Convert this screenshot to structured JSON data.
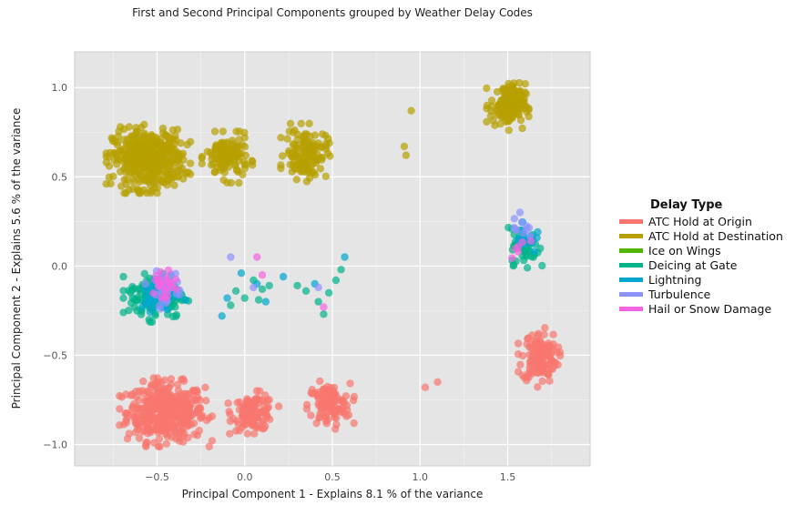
{
  "chart_data": {
    "type": "scatter",
    "title": "First and Second Principal Components grouped by Weather Delay Codes",
    "xlabel": "Principal Component 1 - Explains 8.1 % of the variance",
    "ylabel": "Principal Component 2 - Explains 5.6 % of the variance",
    "xlim": [
      -0.97,
      1.97
    ],
    "ylim": [
      -1.12,
      1.2
    ],
    "x_ticks": [
      -0.5,
      0.0,
      0.5,
      1.0,
      1.5
    ],
    "x_tick_labels": [
      "−0.5",
      "0.0",
      "0.5",
      "1.0",
      "1.5"
    ],
    "y_ticks": [
      -1.0,
      -0.5,
      0.0,
      0.5,
      1.0
    ],
    "y_tick_labels": [
      "−1.0",
      "−0.5",
      "0.0",
      "0.5",
      "1.0"
    ],
    "grid": true,
    "background": "#e5e5e5",
    "legend": {
      "title": "Delay Type",
      "placement": "outside-right",
      "entries": [
        {
          "name": "ATC Hold at Origin",
          "color": "#f8766d"
        },
        {
          "name": "ATC Hold at Destination",
          "color": "#b79f00"
        },
        {
          "name": "Ice on  Wings",
          "color": "#53b400"
        },
        {
          "name": "Deicing at Gate",
          "color": "#00b38a"
        },
        {
          "name": "Lightning",
          "color": "#00a6d0"
        },
        {
          "name": "Turbulence",
          "color": "#8b93ff"
        },
        {
          "name": "Hail or Snow  Damage",
          "color": "#f564e3"
        }
      ]
    },
    "series": [
      {
        "color": "#f8766d",
        "clusters": [
          {
            "cx": -0.45,
            "cy": -0.82,
            "sx": 0.11,
            "sy": 0.08,
            "n": 420
          },
          {
            "cx": 0.05,
            "cy": -0.82,
            "sx": 0.06,
            "sy": 0.05,
            "n": 110
          },
          {
            "cx": 0.48,
            "cy": -0.78,
            "sx": 0.06,
            "sy": 0.06,
            "n": 110
          },
          {
            "cx": 1.68,
            "cy": -0.51,
            "sx": 0.05,
            "sy": 0.07,
            "n": 140
          }
        ],
        "points": [
          [
            1.03,
            -0.68
          ],
          [
            1.1,
            -0.65
          ]
        ]
      },
      {
        "color": "#b79f00",
        "clusters": [
          {
            "cx": -0.55,
            "cy": 0.6,
            "sx": 0.1,
            "sy": 0.08,
            "n": 420
          },
          {
            "cx": -0.1,
            "cy": 0.61,
            "sx": 0.06,
            "sy": 0.06,
            "n": 130
          },
          {
            "cx": 0.35,
            "cy": 0.63,
            "sx": 0.06,
            "sy": 0.07,
            "n": 130
          },
          {
            "cx": 1.5,
            "cy": 0.9,
            "sx": 0.05,
            "sy": 0.06,
            "n": 140
          }
        ],
        "points": [
          [
            0.91,
            0.67
          ],
          [
            0.95,
            0.87
          ],
          [
            0.92,
            0.62
          ]
        ]
      },
      {
        "color": "#00b38a",
        "clusters": [
          {
            "cx": -0.5,
            "cy": -0.17,
            "sx": 0.08,
            "sy": 0.06,
            "n": 150
          },
          {
            "cx": 1.6,
            "cy": 0.11,
            "sx": 0.04,
            "sy": 0.05,
            "n": 60
          }
        ],
        "points": [
          [
            0.0,
            -0.18
          ],
          [
            0.1,
            -0.13
          ],
          [
            0.05,
            -0.08
          ],
          [
            -0.05,
            -0.14
          ],
          [
            0.35,
            -0.14
          ],
          [
            0.42,
            -0.2
          ],
          [
            0.48,
            -0.15
          ],
          [
            0.52,
            -0.08
          ],
          [
            0.55,
            -0.02
          ],
          [
            0.45,
            -0.27
          ],
          [
            0.3,
            -0.11
          ],
          [
            0.14,
            -0.11
          ],
          [
            -0.08,
            -0.22
          ],
          [
            0.08,
            -0.19
          ]
        ]
      },
      {
        "color": "#00a6d0",
        "clusters": [
          {
            "cx": -0.48,
            "cy": -0.15,
            "sx": 0.06,
            "sy": 0.05,
            "n": 50
          },
          {
            "cx": 1.6,
            "cy": 0.15,
            "sx": 0.03,
            "sy": 0.04,
            "n": 18
          }
        ],
        "points": [
          [
            -0.02,
            -0.04
          ],
          [
            0.07,
            -0.1
          ],
          [
            0.12,
            -0.2
          ],
          [
            -0.13,
            -0.28
          ],
          [
            0.57,
            0.05
          ],
          [
            0.4,
            -0.1
          ],
          [
            -0.1,
            -0.18
          ],
          [
            0.22,
            -0.06
          ]
        ]
      },
      {
        "color": "#8b93ff",
        "clusters": [
          {
            "cx": -0.45,
            "cy": -0.12,
            "sx": 0.05,
            "sy": 0.05,
            "n": 28
          },
          {
            "cx": 1.58,
            "cy": 0.2,
            "sx": 0.03,
            "sy": 0.03,
            "n": 10
          }
        ],
        "points": [
          [
            -0.08,
            0.05
          ],
          [
            0.05,
            -0.12
          ],
          [
            0.42,
            -0.12
          ],
          [
            1.57,
            0.3
          ]
        ]
      },
      {
        "color": "#f564e3",
        "clusters": [
          {
            "cx": -0.47,
            "cy": -0.1,
            "sx": 0.06,
            "sy": 0.05,
            "n": 24
          },
          {
            "cx": 1.57,
            "cy": 0.14,
            "sx": 0.03,
            "sy": 0.04,
            "n": 6
          }
        ],
        "points": [
          [
            0.07,
            0.05
          ],
          [
            0.1,
            -0.05
          ],
          [
            0.45,
            -0.23
          ]
        ]
      }
    ]
  }
}
